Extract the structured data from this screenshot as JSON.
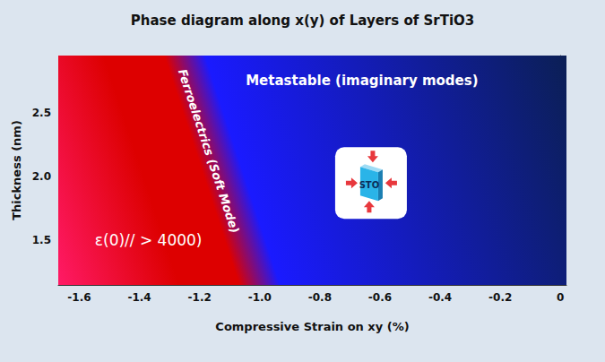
{
  "chart_data": {
    "type": "phase_diagram",
    "title": "Phase diagram along x(y) of Layers of SrTiO3",
    "x_label": "Compressive Strain on xy (%)",
    "y_label": "Thickness (nm)",
    "xlim": [
      -1.67,
      0.02
    ],
    "xticks": [
      -1.6,
      -1.4,
      -1.2,
      {
        "value": -1,
        "label": "-1.0"
      },
      -0.8,
      -0.6,
      -0.4,
      -0.2,
      0
    ],
    "ylim": [
      1.15,
      2.95
    ],
    "yticks": [
      1.5,
      {
        "value": 2,
        "label": "2.0"
      },
      2.5
    ],
    "grid": false,
    "colors": [
      "#ff1a66",
      "#dd0000",
      "#1a1aff",
      "#0b1f55"
    ],
    "boundary": {
      "x": [
        -1.0,
        -1.25
      ],
      "y": [
        1.15,
        2.95
      ],
      "label": {
        "text": "Ferroelectrics (Soft Mode)",
        "x": -1.17,
        "y": 2.2
      }
    },
    "annotations": [
      {
        "text": "ε(0)// > 4000)",
        "x": -1.37,
        "y": 1.5
      },
      {
        "text": "Metastable (imaginary modes)",
        "x": -0.66,
        "y": 2.75
      }
    ],
    "inset": {
      "text": "STO",
      "x": -0.63,
      "y": 1.95
    }
  }
}
